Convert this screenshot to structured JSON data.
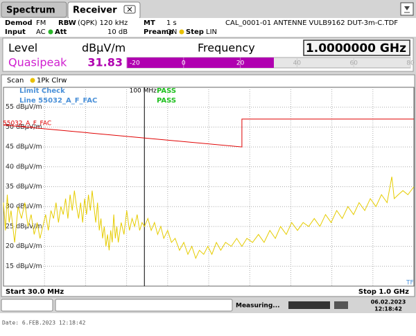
{
  "tabs": [
    "Spectrum",
    "Receiver"
  ],
  "header": {
    "demod_label": "Demod",
    "demod": "FM",
    "rbw_label": "RBW",
    "rbw": "(QPK) 120 kHz",
    "mt_label": "MT",
    "mt": "1 s",
    "transducer": "CAL_0001-01 ANTENNE VULB9162 DUT-3m-C.TDF",
    "input_label": "Input",
    "input": "AC",
    "att_label": "Att",
    "att": "10 dB",
    "preamp_label": "Preamp",
    "preamp": "ON",
    "step_label": "Step",
    "step": "LIN"
  },
  "level": {
    "label": "Level",
    "unit": "dBµV/m",
    "freq_label": "Frequency",
    "frequency": "1.0000000 GHz",
    "detector": "Quasipeak",
    "value": 31.83,
    "bar_range": [
      -20,
      80
    ],
    "bar_ticks": [
      -20,
      0,
      20,
      40,
      60,
      80
    ]
  },
  "chart_data": {
    "type": "line",
    "scan_label": "Scan",
    "limit_check": "Limit Check",
    "limit_check_result": "PASS",
    "limit_line": "Line 55032_A_F_FAC",
    "limit_line_result": "PASS",
    "tf": "TF",
    "start_label": "Start 30.0 MHz",
    "stop_label": "Stop 1.0 GHz",
    "marker": {
      "x": 100,
      "label": "100 MHz"
    },
    "xlim": [
      30,
      1000
    ],
    "log_x": true,
    "ylim": [
      10,
      60
    ],
    "grid": true,
    "yticks": [
      {
        "value": 55,
        "label": "55 dBµV/m"
      },
      {
        "value": 50,
        "label": "50 dBµV/m"
      },
      {
        "value": 45,
        "label": "45 dBµV/m"
      },
      {
        "value": 40,
        "label": "40 dBµV/m"
      },
      {
        "value": 35,
        "label": "35 dBµV/m"
      },
      {
        "value": 30,
        "label": "30 dBµV/m"
      },
      {
        "value": 25,
        "label": "25 dBµV/m"
      },
      {
        "value": 20,
        "label": "20 dBµV/m"
      },
      {
        "value": 15,
        "label": "15 dBµV/m"
      }
    ],
    "series": [
      {
        "name": "1Pk Clrw",
        "color": "#e6cc00",
        "x": [
          30,
          30.5,
          31,
          31.5,
          32,
          33,
          34,
          35,
          36,
          37,
          38,
          39,
          40,
          41,
          42,
          43,
          44,
          45,
          46,
          47,
          48,
          49,
          50,
          51,
          52,
          53,
          54,
          55,
          56,
          57,
          58,
          59,
          60,
          61,
          62,
          63,
          64,
          65,
          66,
          67,
          68,
          69,
          70,
          71,
          72,
          73,
          74,
          75,
          76,
          77,
          78,
          79,
          80,
          82,
          84,
          86,
          88,
          90,
          92,
          94,
          96,
          98,
          100,
          103,
          106,
          109,
          112,
          115,
          118,
          122,
          126,
          130,
          135,
          140,
          145,
          150,
          155,
          160,
          166,
          172,
          178,
          185,
          192,
          200,
          210,
          220,
          230,
          240,
          252,
          265,
          278,
          292,
          306,
          320,
          336,
          352,
          370,
          388,
          407,
          427,
          448,
          470,
          493,
          517,
          542,
          569,
          597,
          626,
          657,
          689,
          723,
          758,
          795,
          828,
          845,
          875,
          910,
          950,
          1000
        ],
        "values": [
          31,
          24,
          33,
          26,
          29,
          21,
          30,
          27,
          31,
          25,
          28,
          23,
          26,
          22,
          25,
          28,
          24,
          29,
          27,
          31,
          26,
          30,
          28,
          32,
          27,
          33,
          29,
          34,
          30,
          27,
          31,
          26,
          32,
          28,
          33,
          29,
          34,
          30,
          26,
          31,
          24,
          27,
          22,
          25,
          20,
          23,
          19,
          24,
          21,
          28,
          22,
          25,
          21,
          26,
          23,
          29,
          24,
          27,
          25,
          28,
          24,
          26,
          25,
          27,
          24,
          26,
          23,
          25,
          22,
          24,
          21,
          22,
          19,
          21,
          18,
          20,
          17,
          19,
          18,
          20,
          18,
          21,
          19,
          21,
          20,
          22,
          20,
          22,
          21,
          23,
          21,
          24,
          22,
          25,
          23,
          26,
          24,
          26,
          25,
          27,
          25,
          28,
          26,
          29,
          27,
          30,
          28,
          31,
          29,
          32,
          30,
          33,
          31,
          37.5,
          32,
          33,
          34,
          33,
          35
        ]
      },
      {
        "name": "55032_A_F_FAC",
        "color": "#e00000",
        "x": [
          30,
          230,
          230,
          1000
        ],
        "values": [
          50.5,
          45,
          52,
          52
        ]
      }
    ]
  },
  "status": {
    "state": "Measuring...",
    "date": "06.02.2023",
    "time": "12:18:42"
  },
  "footer": "Date: 6.FEB.2023  12:18:42"
}
